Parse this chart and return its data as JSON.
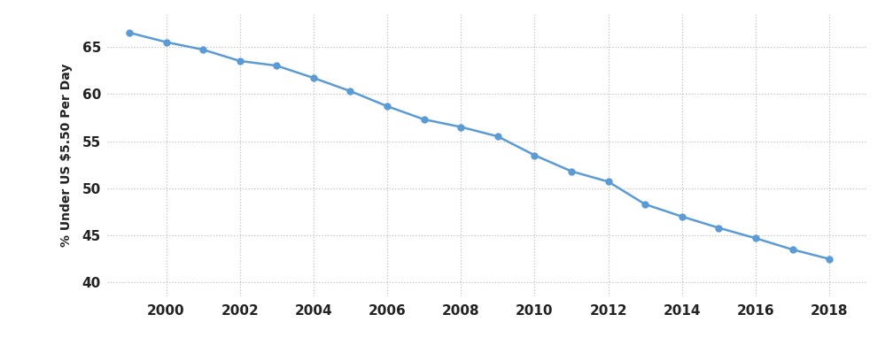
{
  "years": [
    1999,
    2000,
    2001,
    2002,
    2003,
    2004,
    2005,
    2006,
    2007,
    2008,
    2009,
    2010,
    2011,
    2012,
    2013,
    2014,
    2015,
    2016,
    2017,
    2018
  ],
  "values": [
    66.5,
    65.5,
    64.7,
    63.5,
    63.0,
    61.7,
    60.3,
    58.7,
    57.3,
    56.5,
    55.5,
    53.5,
    51.8,
    50.7,
    48.3,
    47.0,
    45.8,
    44.7,
    43.5,
    42.5
  ],
  "line_color": "#5b9bd5",
  "marker_color": "#5b9bd5",
  "background_color": "#ffffff",
  "grid_color": "#c0c0c0",
  "ylabel": "% Under US $5.50 Per Day",
  "ylim": [
    38.5,
    68.5
  ],
  "yticks": [
    40,
    45,
    50,
    55,
    60,
    65
  ],
  "xticks": [
    2000,
    2002,
    2004,
    2006,
    2008,
    2010,
    2012,
    2014,
    2016,
    2018
  ],
  "figsize": [
    10.08,
    3.9
  ],
  "dpi": 100
}
